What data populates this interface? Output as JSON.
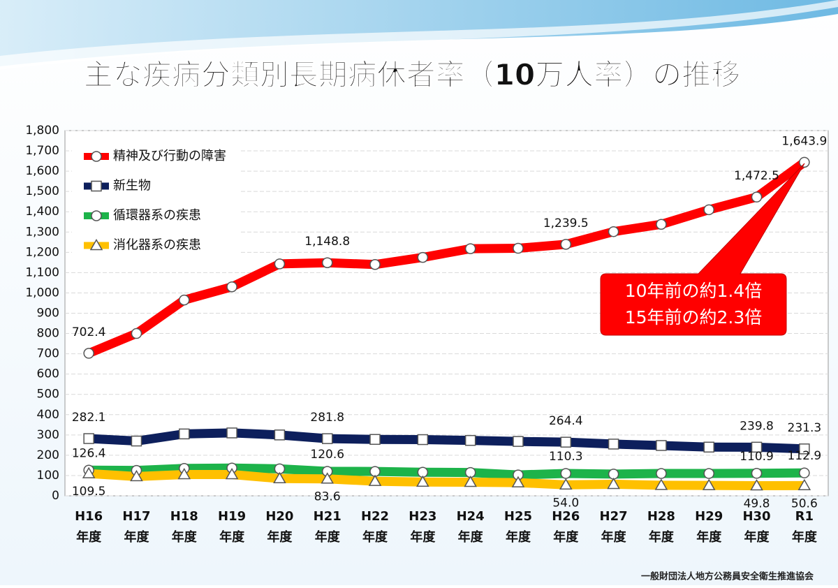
{
  "chart_data": {
    "type": "line",
    "title": "主な疾病分類別長期病休者率（10万人率）の推移",
    "categories": [
      "H16\n年度",
      "H17\n年度",
      "H18\n年度",
      "H19\n年度",
      "H20\n年度",
      "H21\n年度",
      "H22\n年度",
      "H23\n年度",
      "H24\n年度",
      "H25\n年度",
      "H26\n年度",
      "H27\n年度",
      "H28\n年度",
      "H29\n年度",
      "H30\n年度",
      "R1\n年度"
    ],
    "series": [
      {
        "name": "精神及び行動の障害",
        "color": "#ff0000",
        "marker": "circle",
        "values": [
          702.4,
          800,
          965,
          1030,
          1143,
          1148.8,
          1140,
          1175,
          1218,
          1220,
          1239.5,
          1302,
          1338,
          1410,
          1472.5,
          1643.9
        ],
        "value_labels": [
          "702.4",
          null,
          null,
          null,
          null,
          "1,148.8",
          null,
          null,
          null,
          null,
          "1,239.5",
          null,
          null,
          null,
          "1,472.5",
          "1,643.9"
        ]
      },
      {
        "name": "新生物",
        "color": "#0d1f5c",
        "marker": "square",
        "values": [
          282.1,
          270,
          305,
          310,
          300,
          281.8,
          278,
          277,
          273,
          268,
          264.4,
          255,
          248,
          240,
          239.8,
          231.3
        ],
        "value_labels": [
          "282.1",
          null,
          null,
          null,
          null,
          "281.8",
          null,
          null,
          null,
          null,
          "264.4",
          null,
          null,
          null,
          "239.8",
          "231.3"
        ]
      },
      {
        "name": "循環器系の疾患",
        "color": "#1db34a",
        "marker": "circle",
        "values": [
          126.4,
          125,
          135,
          137,
          133,
          120.6,
          120,
          116,
          115,
          103,
          110.3,
          107,
          110,
          110,
          110.9,
          112.9
        ],
        "value_labels": [
          "126.4",
          null,
          null,
          null,
          null,
          "120.6",
          null,
          null,
          null,
          null,
          "110.3",
          null,
          null,
          null,
          "110.9",
          "112.9"
        ]
      },
      {
        "name": "消化器系の疾患",
        "color": "#ffc000",
        "marker": "triangle",
        "values": [
          109.5,
          95,
          105,
          105,
          85,
          83.6,
          72,
          68,
          67,
          65,
          54.0,
          57,
          52,
          51,
          49.8,
          50.6
        ],
        "value_labels": [
          "109.5",
          null,
          null,
          null,
          null,
          "83.6",
          null,
          null,
          null,
          null,
          "54.0",
          null,
          null,
          null,
          "49.8",
          "50.6"
        ]
      }
    ],
    "ylim": [
      0,
      1800
    ],
    "yticks": [
      0,
      100,
      200,
      300,
      400,
      500,
      600,
      700,
      800,
      900,
      {
        "value": 1000,
        "label": "1,000"
      },
      {
        "value": 1100,
        "label": "1,100"
      },
      {
        "value": 1200,
        "label": "1,200"
      },
      {
        "value": 1300,
        "label": "1,300"
      },
      {
        "value": 1400,
        "label": "1,400"
      },
      {
        "value": 1500,
        "label": "1,500"
      },
      {
        "value": 1600,
        "label": "1,600"
      },
      {
        "value": 1700,
        "label": "1,700"
      },
      {
        "value": 1800,
        "label": "1,800"
      }
    ],
    "grid": true,
    "legend": "upper left",
    "annotations": [
      "10年前の約1.4倍",
      "15年前の約2.3倍"
    ],
    "source": "一般財団法人地方公務員安全衛生推進協会"
  }
}
